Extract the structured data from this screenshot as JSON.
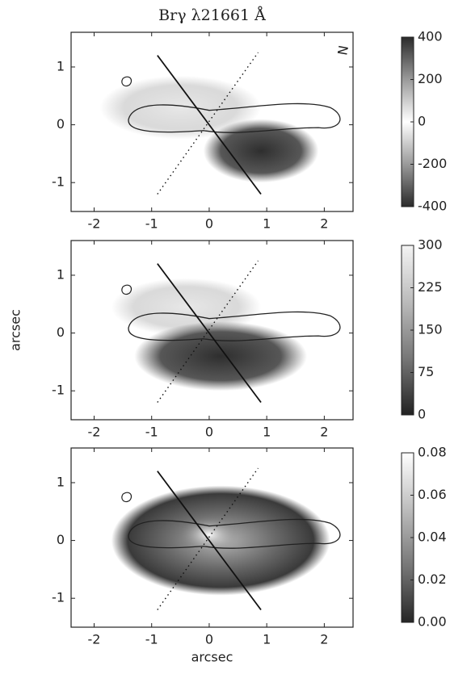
{
  "chart_data": [
    {
      "type": "heatmap",
      "title": "Brγ λ21661 Å",
      "compass": "N",
      "xlim": [
        -2.4,
        2.5
      ],
      "xticks": [
        -2,
        -1,
        0,
        1,
        2
      ],
      "ylim": [
        -1.5,
        1.6
      ],
      "yticks": [
        -1,
        0,
        1
      ],
      "clim": [
        -400,
        400
      ],
      "cticks": [
        -400,
        -200,
        0,
        200,
        400
      ],
      "colormap": [
        "#2a2a2a",
        "#9a9a9a",
        "#ffffff",
        "#9a9a9a",
        "#2a2a2a"
      ]
    },
    {
      "type": "heatmap",
      "ylabel": "arcsec",
      "xlim": [
        -2.4,
        2.5
      ],
      "xticks": [
        -2,
        -1,
        0,
        1,
        2
      ],
      "ylim": [
        -1.5,
        1.6
      ],
      "yticks": [
        -1,
        0,
        1
      ],
      "clim": [
        0,
        300
      ],
      "cticks": [
        0,
        75,
        150,
        225,
        300
      ],
      "colormap": [
        "#222222",
        "#777777",
        "#bbbbbb",
        "#f4f4f4"
      ]
    },
    {
      "type": "heatmap",
      "xlabel": "arcsec",
      "xlim": [
        -2.4,
        2.5
      ],
      "xticks": [
        -2,
        -1,
        0,
        1,
        2
      ],
      "ylim": [
        -1.5,
        1.6
      ],
      "yticks": [
        -1,
        0,
        1
      ],
      "clim": [
        0,
        0.08
      ],
      "cticks": [
        {
          "value": 0,
          "label": "0.00"
        },
        0.02,
        0.04,
        0.06,
        0.08
      ],
      "colormap": [
        "#262626",
        "#777777",
        "#bdbdbd",
        "#ffffff"
      ]
    }
  ]
}
